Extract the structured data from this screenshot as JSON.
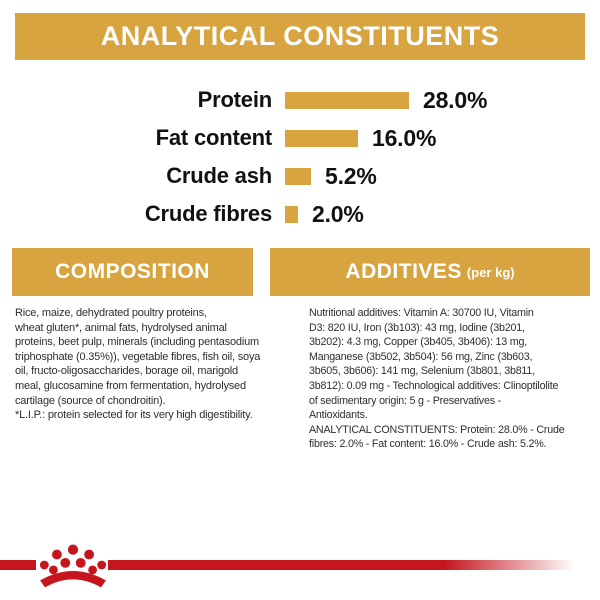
{
  "header": {
    "title": "ANALYTICAL CONSTITUENTS"
  },
  "chart_data": {
    "type": "bar",
    "orientation": "horizontal",
    "title": "ANALYTICAL CONSTITUENTS",
    "categories": [
      "Protein",
      "Fat content",
      "Crude ash",
      "Crude fibres"
    ],
    "values": [
      28.0,
      16.0,
      5.2,
      2.0
    ],
    "value_labels": [
      "28.0%",
      "16.0%",
      "5.2%",
      "2.0%"
    ],
    "unit": "%",
    "xlabel": "",
    "ylabel": "",
    "xlim": [
      0,
      30
    ],
    "grid": false,
    "bar_color": "#D8A440",
    "legend": "none"
  },
  "composition": {
    "title": "COMPOSITION",
    "lines": [
      "Rice, maize, dehydrated poultry proteins,",
      "wheat gluten*, animal fats, hydrolysed animal",
      "proteins, beet pulp, minerals (including pentasodium",
      "triphosphate (0.35%)), vegetable fibres, fish oil, soya",
      "oil, fructo-oligosaccharides, borage oil, marigold",
      "meal, glucosamine from fermentation, hydrolysed",
      "cartilage (source of chondroitin).",
      "*L.I.P.: protein selected for its very high digestibility."
    ]
  },
  "additives": {
    "title": "ADDITIVES",
    "title_suffix": "(per kg)",
    "lines": [
      "Nutritional additives: Vitamin A: 30700 IU, Vitamin",
      "D3: 820 IU, Iron (3b103): 43 mg, Iodine (3b201,",
      "3b202): 4.3 mg, Copper (3b405, 3b406): 13 mg,",
      "Manganese (3b502, 3b504): 56 mg, Zinc (3b603,",
      "3b605, 3b606): 141 mg, Selenium (3b801, 3b811,",
      "3b812): 0.09 mg - Technological additives: Clinoptilolite",
      "of sedimentary origin: 5 g - Preservatives -",
      "Antioxidants.",
      "ANALYTICAL CONSTITUENTS: Protein: 28.0% - Crude",
      "fibres: 2.0% - Fat content: 16.0% - Crude ash: 5.2%."
    ]
  },
  "footer": {
    "logo_icon": "royal-canin-crown-icon"
  },
  "colors": {
    "gold": "#D8A440",
    "red": "#C5161D",
    "text": "#2e2e2e"
  }
}
